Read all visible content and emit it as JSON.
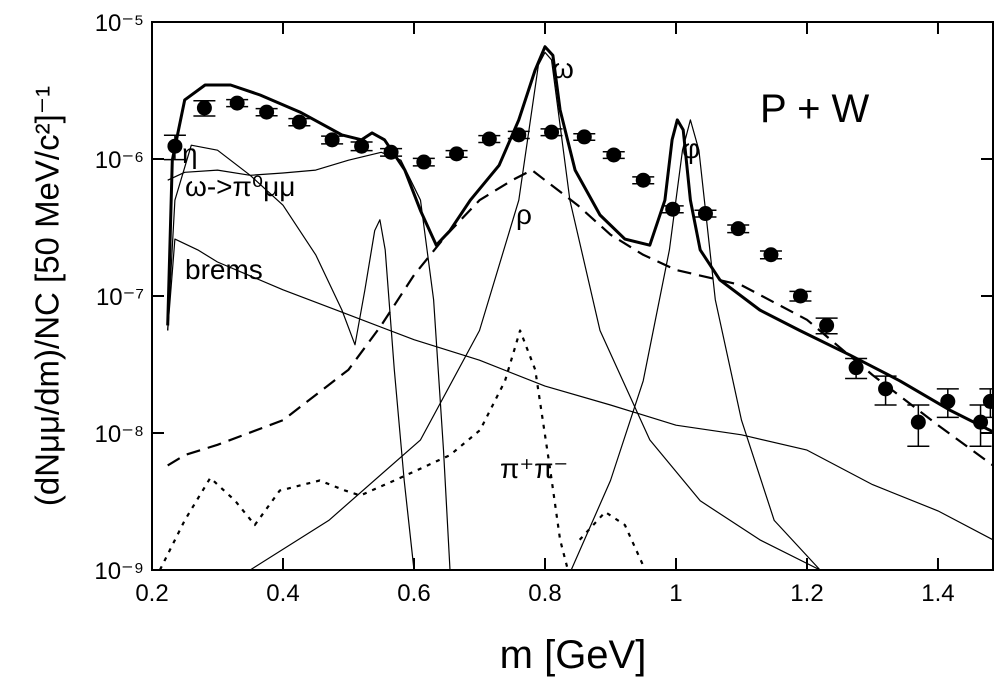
{
  "chart_data": {
    "type": "line",
    "xlabel": "m [GeV]",
    "ylabel": "(dNμμ/dm)/NC [50 MeV/c²]⁻¹",
    "annotation": "P + W",
    "log_y": true,
    "xlim": [
      0.2,
      1.484
    ],
    "ylim": [
      1e-09,
      1e-05
    ],
    "xticks": [
      0.2,
      0.4,
      0.6,
      0.8,
      1.0,
      1.2,
      1.4
    ],
    "yticks": [
      {
        "value": 1e-09,
        "label": "10⁻⁹"
      },
      {
        "value": 1e-08,
        "label": "10⁻⁸"
      },
      {
        "value": 1e-07,
        "label": "10⁻⁷"
      },
      {
        "value": 1e-06,
        "label": "10⁻⁶"
      },
      {
        "value": 1e-05,
        "label": "10⁻⁵"
      }
    ],
    "series": [
      {
        "color": "#000000",
        "style": "solid",
        "width": 3,
        "x": [
          0.224,
          0.231,
          0.25,
          0.281,
          0.32,
          0.365,
          0.426,
          0.49,
          0.52,
          0.536,
          0.555,
          0.586,
          0.61,
          0.634,
          0.655,
          0.686,
          0.73,
          0.76,
          0.785,
          0.8,
          0.812,
          0.823,
          0.846,
          0.884,
          0.922,
          0.96,
          0.983,
          0.994,
          1.002,
          1.011,
          1.022,
          1.037,
          1.067,
          1.128,
          1.189,
          1.266,
          1.342,
          1.418,
          1.484
        ],
        "values": [
          6.1e-08,
          9.8e-07,
          2.7e-06,
          3.47e-06,
          3.47e-06,
          2.93e-06,
          2.2e-06,
          1.5e-06,
          1.38e-06,
          1.55e-06,
          1.38e-06,
          8.3e-07,
          4.2e-07,
          2.35e-07,
          3e-07,
          5e-07,
          9e-07,
          1.93e-06,
          4.47e-06,
          6.6e-06,
          5.7e-06,
          2.28e-06,
          8.3e-07,
          3.9e-07,
          2.6e-07,
          2.35e-07,
          5e-07,
          1.38e-06,
          1.93e-06,
          1.63e-06,
          5e-07,
          2.17e-07,
          1.31e-07,
          7.9e-08,
          5.6e-08,
          3.7e-08,
          2.4e-08,
          1.47e-08,
          1.02e-08
        ]
      },
      {
        "name": "η",
        "color": "#000000",
        "style": "solid",
        "width": 1.2,
        "x": [
          0.224,
          0.235,
          0.26,
          0.3,
          0.35,
          0.4,
          0.45,
          0.49,
          0.51,
          0.525,
          0.54,
          0.548,
          0.556,
          0.57,
          0.585,
          0.6
        ],
        "values": [
          5.6e-08,
          5e-07,
          1.26e-06,
          1.16e-06,
          7.6e-07,
          4.6e-07,
          2e-07,
          7.9e-08,
          4.4e-08,
          1.11e-07,
          3e-07,
          3.6e-07,
          2.17e-07,
          2.9e-08,
          4.5e-09,
          1e-09
        ]
      },
      {
        "name": "ω->π⁰μμ",
        "color": "#000000",
        "style": "solid",
        "width": 1.2,
        "x": [
          0.224,
          0.25,
          0.3,
          0.35,
          0.4,
          0.45,
          0.5,
          0.55,
          0.58,
          0.61,
          0.63,
          0.645,
          0.655
        ],
        "values": [
          7e-07,
          8e-07,
          8.3e-07,
          7.6e-07,
          7.9e-07,
          8.3e-07,
          9.8e-07,
          1.12e-06,
          9.8e-07,
          5e-07,
          9.4e-08,
          7.5e-09,
          1e-09
        ]
      },
      {
        "name": "brems",
        "color": "#000000",
        "style": "solid",
        "width": 1.2,
        "x": [
          0.224,
          0.235,
          0.27,
          0.3,
          0.4,
          0.5,
          0.6,
          0.7,
          0.8,
          0.9,
          1.0,
          1.1,
          1.2,
          1.3,
          1.4,
          1.484
        ],
        "values": [
          5.6e-08,
          2.6e-07,
          2.17e-07,
          1.77e-07,
          1.11e-07,
          7.3e-08,
          4.8e-08,
          3.4e-08,
          2.2e-08,
          1.6e-08,
          1.14e-08,
          9.7e-09,
          7.5e-09,
          4.2e-09,
          2.7e-09,
          1.66e-09
        ]
      },
      {
        "name": "ω",
        "color": "#000000",
        "style": "solid",
        "width": 1.2,
        "x": [
          0.35,
          0.47,
          0.61,
          0.7,
          0.76,
          0.79,
          0.8,
          0.81,
          0.838,
          0.884,
          0.96,
          1.037,
          1.128,
          1.22
        ],
        "values": [
          1e-09,
          2.3e-09,
          8.9e-09,
          5.6e-08,
          5e-07,
          4.85e-06,
          6e-06,
          5.3e-06,
          5e-07,
          5.6e-08,
          8.9e-09,
          3.2e-09,
          1.66e-09,
          1e-09
        ]
      },
      {
        "name": "φ",
        "color": "#000000",
        "style": "solid",
        "width": 1.2,
        "x": [
          0.84,
          0.9,
          0.95,
          0.99,
          1.01,
          1.022,
          1.035,
          1.06,
          1.1,
          1.15,
          1.22
        ],
        "values": [
          1e-09,
          4.5e-09,
          2.4e-08,
          2.17e-07,
          1.16e-06,
          1.93e-06,
          1.16e-06,
          9.4e-08,
          1.24e-08,
          2.3e-09,
          1e-09
        ]
      },
      {
        "name": "ρ",
        "color": "#000000",
        "style": "dashed",
        "width": 2.2,
        "x": [
          0.224,
          0.25,
          0.3,
          0.4,
          0.5,
          0.55,
          0.6,
          0.65,
          0.7,
          0.75,
          0.78,
          0.8,
          0.85,
          0.9,
          0.95,
          1.0,
          1.1,
          1.2,
          1.3,
          1.4,
          1.484
        ],
        "values": [
          5.8e-09,
          6.9e-09,
          8.2e-09,
          1.24e-08,
          2.9e-08,
          6.1e-08,
          1.42e-07,
          2.8e-07,
          5e-07,
          7e-07,
          8.3e-07,
          7e-07,
          4.6e-07,
          2.8e-07,
          2e-07,
          1.55e-07,
          1.2e-07,
          6.7e-08,
          2.65e-08,
          1.14e-08,
          5.8e-09
        ]
      },
      {
        "name": "π⁺π⁻",
        "color": "#000000",
        "style": "dotted",
        "width": 2.2,
        "x": [
          0.212,
          0.25,
          0.289,
          0.327,
          0.357,
          0.395,
          0.456,
          0.495,
          0.518,
          0.579,
          0.655,
          0.701,
          0.739,
          0.762,
          0.785,
          0.808,
          0.823,
          0.835,
          0.844,
          0.853,
          0.892,
          0.922,
          0.953
        ],
        "values": [
          1e-09,
          2.3e-09,
          4.7e-09,
          3.2e-09,
          2.13e-09,
          3.8e-09,
          4.5e-09,
          3.8e-09,
          3.5e-09,
          4.7e-09,
          6.9e-09,
          1.05e-08,
          2.4e-08,
          5.6e-08,
          2.9e-08,
          5.4e-09,
          1.66e-09,
          1e-09,
          null,
          1.66e-09,
          2.65e-09,
          2.13e-09,
          1e-09
        ]
      }
    ],
    "points": {
      "color": "#000000",
      "x": [
        0.235,
        0.28,
        0.33,
        0.375,
        0.425,
        0.475,
        0.52,
        0.565,
        0.615,
        0.665,
        0.715,
        0.76,
        0.81,
        0.86,
        0.905,
        0.95,
        0.995,
        1.045,
        1.095,
        1.145,
        1.19,
        1.23,
        1.275,
        1.32,
        1.37,
        1.415,
        1.465,
        1.48
      ],
      "values": [
        1.24e-06,
        2.36e-06,
        2.56e-06,
        2.2e-06,
        1.86e-06,
        1.38e-06,
        1.24e-06,
        1.12e-06,
        9.5e-07,
        1.09e-06,
        1.4e-06,
        1.5e-06,
        1.57e-06,
        1.45e-06,
        1.07e-06,
        7e-07,
        4.3e-07,
        4e-07,
        3.1e-07,
        2e-07,
        1e-07,
        6.1e-08,
        3e-08,
        2.1e-08,
        1.2e-08,
        1.7e-08,
        1.2e-08,
        1.7e-08
      ],
      "errors": [
        2.5e-07,
        3e-07,
        1.5e-07,
        1.3e-07,
        1.1e-07,
        9e-08,
        9e-08,
        7e-08,
        6e-08,
        6e-08,
        8e-08,
        9e-08,
        9e-08,
        8e-08,
        6e-08,
        4e-08,
        2.5e-08,
        2.3e-08,
        2e-08,
        1.3e-08,
        8e-09,
        8e-09,
        5e-09,
        5e-09,
        4e-09,
        4e-09,
        4e-09,
        4e-09
      ]
    }
  }
}
